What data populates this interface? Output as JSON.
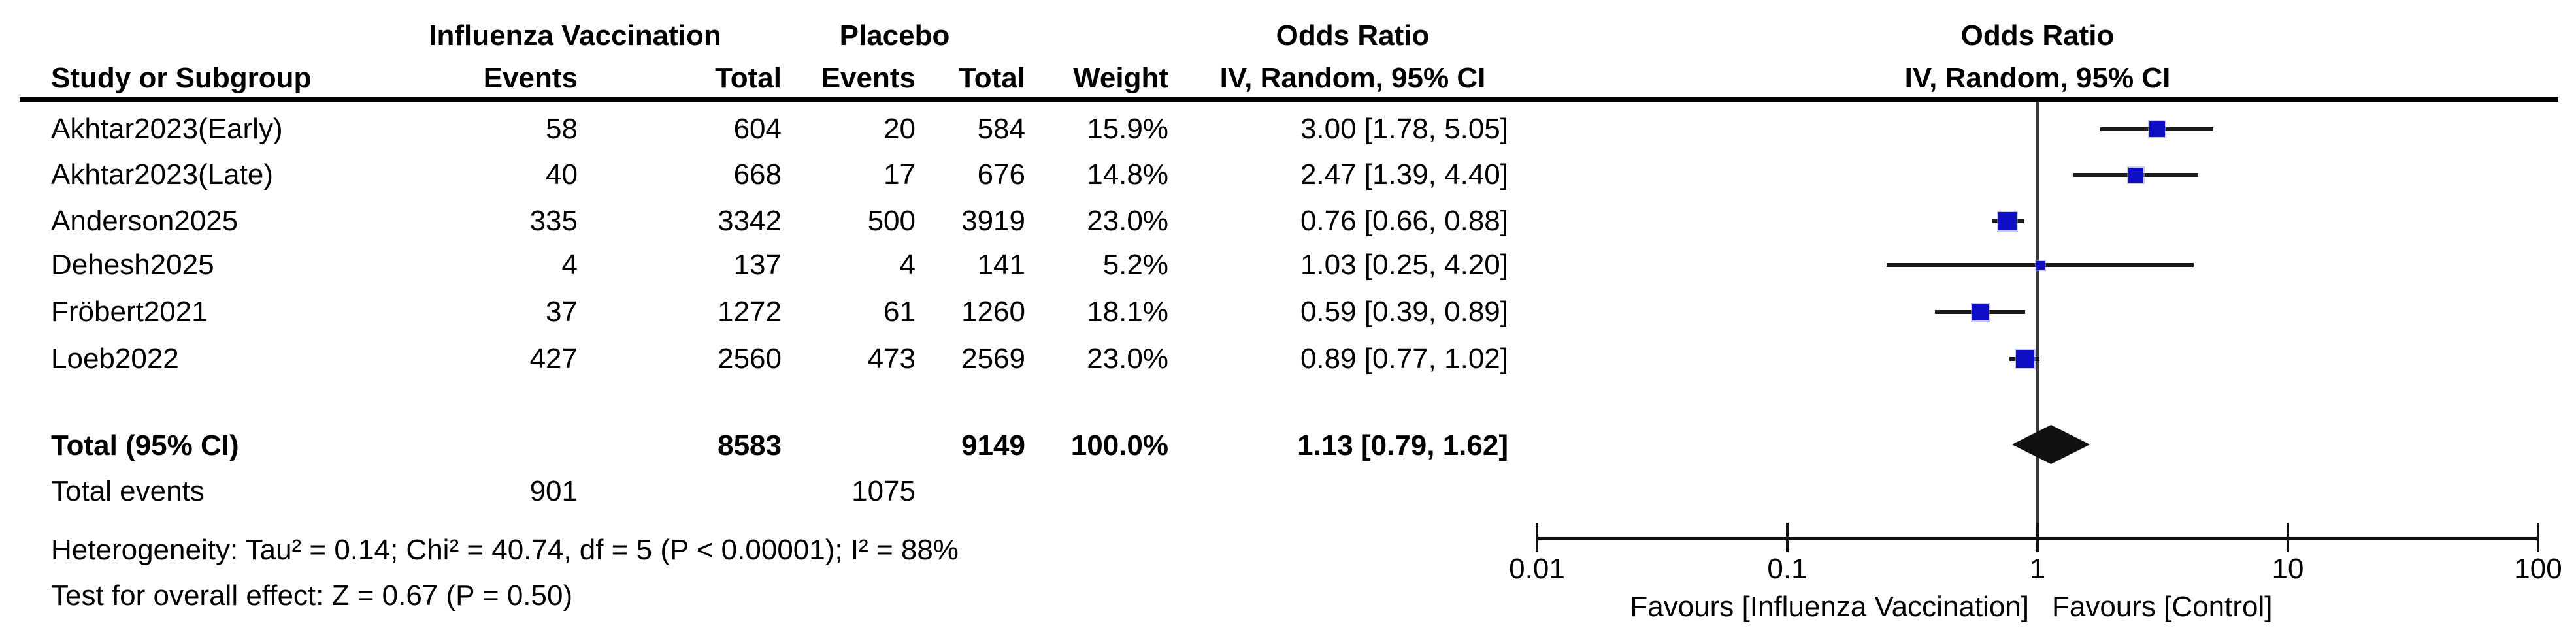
{
  "figure": {
    "columns": {
      "group1": "Influenza Vaccination",
      "group2": "Placebo",
      "study": "Study or Subgroup",
      "events": "Events",
      "total": "Total",
      "weight": "Weight",
      "or_title": "Odds Ratio",
      "or_method": "IV, Random, 95% CI"
    },
    "rows": [
      {
        "study": "Akhtar2023(Early)",
        "events1": "58",
        "total1": "604",
        "events2": "20",
        "total2": "584",
        "weight": "15.9%",
        "or_ci": "3.00 [1.78, 5.05]"
      },
      {
        "study": "Akhtar2023(Late)",
        "events1": "40",
        "total1": "668",
        "events2": "17",
        "total2": "676",
        "weight": "14.8%",
        "or_ci": "2.47 [1.39, 4.40]"
      },
      {
        "study": "Anderson2025",
        "events1": "335",
        "total1": "3342",
        "events2": "500",
        "total2": "3919",
        "weight": "23.0%",
        "or_ci": "0.76 [0.66, 0.88]"
      },
      {
        "study": "Dehesh2025",
        "events1": "4",
        "total1": "137",
        "events2": "4",
        "total2": "141",
        "weight": "5.2%",
        "or_ci": "1.03 [0.25, 4.20]"
      },
      {
        "study": "Fröbert2021",
        "events1": "37",
        "total1": "1272",
        "events2": "61",
        "total2": "1260",
        "weight": "18.1%",
        "or_ci": "0.59 [0.39, 0.89]"
      },
      {
        "study": "Loeb2022",
        "events1": "427",
        "total1": "2560",
        "events2": "473",
        "total2": "2569",
        "weight": "23.0%",
        "or_ci": "0.89 [0.77, 1.02]"
      }
    ],
    "total_row": {
      "label": "Total (95% CI)",
      "total1": "8583",
      "total2": "9149",
      "weight": "100.0%",
      "or_ci": "1.13 [0.79, 1.62]"
    },
    "total_events": {
      "label": "Total events",
      "events1": "901",
      "events2": "1075"
    },
    "heterogeneity": "Heterogeneity: Tau² = 0.14; Chi² = 40.74, df = 5 (P < 0.00001); I² = 88%",
    "overall_effect": "Test for overall effect: Z = 0.67 (P = 0.50)"
  },
  "chart_data": {
    "type": "forest",
    "scale": "log10",
    "title": "Odds Ratio",
    "method_label": "IV, Random, 95% CI",
    "xlim": [
      0.01,
      100
    ],
    "x_ticks": [
      0.01,
      0.1,
      1,
      10,
      100
    ],
    "null_line": 1,
    "favours_left": "Favours [Influenza Vaccination]",
    "favours_right": "Favours [Control]",
    "marker_color": "#0e0ec4",
    "line_color": "#1b1b1b",
    "diamond_color": "#111111",
    "studies": [
      {
        "name": "Akhtar2023(Early)",
        "or": 3.0,
        "ci_low": 1.78,
        "ci_high": 5.05,
        "weight_pct": 15.9
      },
      {
        "name": "Akhtar2023(Late)",
        "or": 2.47,
        "ci_low": 1.39,
        "ci_high": 4.4,
        "weight_pct": 14.8
      },
      {
        "name": "Anderson2025",
        "or": 0.76,
        "ci_low": 0.66,
        "ci_high": 0.88,
        "weight_pct": 23.0
      },
      {
        "name": "Dehesh2025",
        "or": 1.03,
        "ci_low": 0.25,
        "ci_high": 4.2,
        "weight_pct": 5.2
      },
      {
        "name": "Fröbert2021",
        "or": 0.59,
        "ci_low": 0.39,
        "ci_high": 0.89,
        "weight_pct": 18.1
      },
      {
        "name": "Loeb2022",
        "or": 0.89,
        "ci_low": 0.77,
        "ci_high": 1.02,
        "weight_pct": 23.0
      }
    ],
    "overall": {
      "or": 1.13,
      "ci_low": 0.79,
      "ci_high": 1.62
    }
  }
}
